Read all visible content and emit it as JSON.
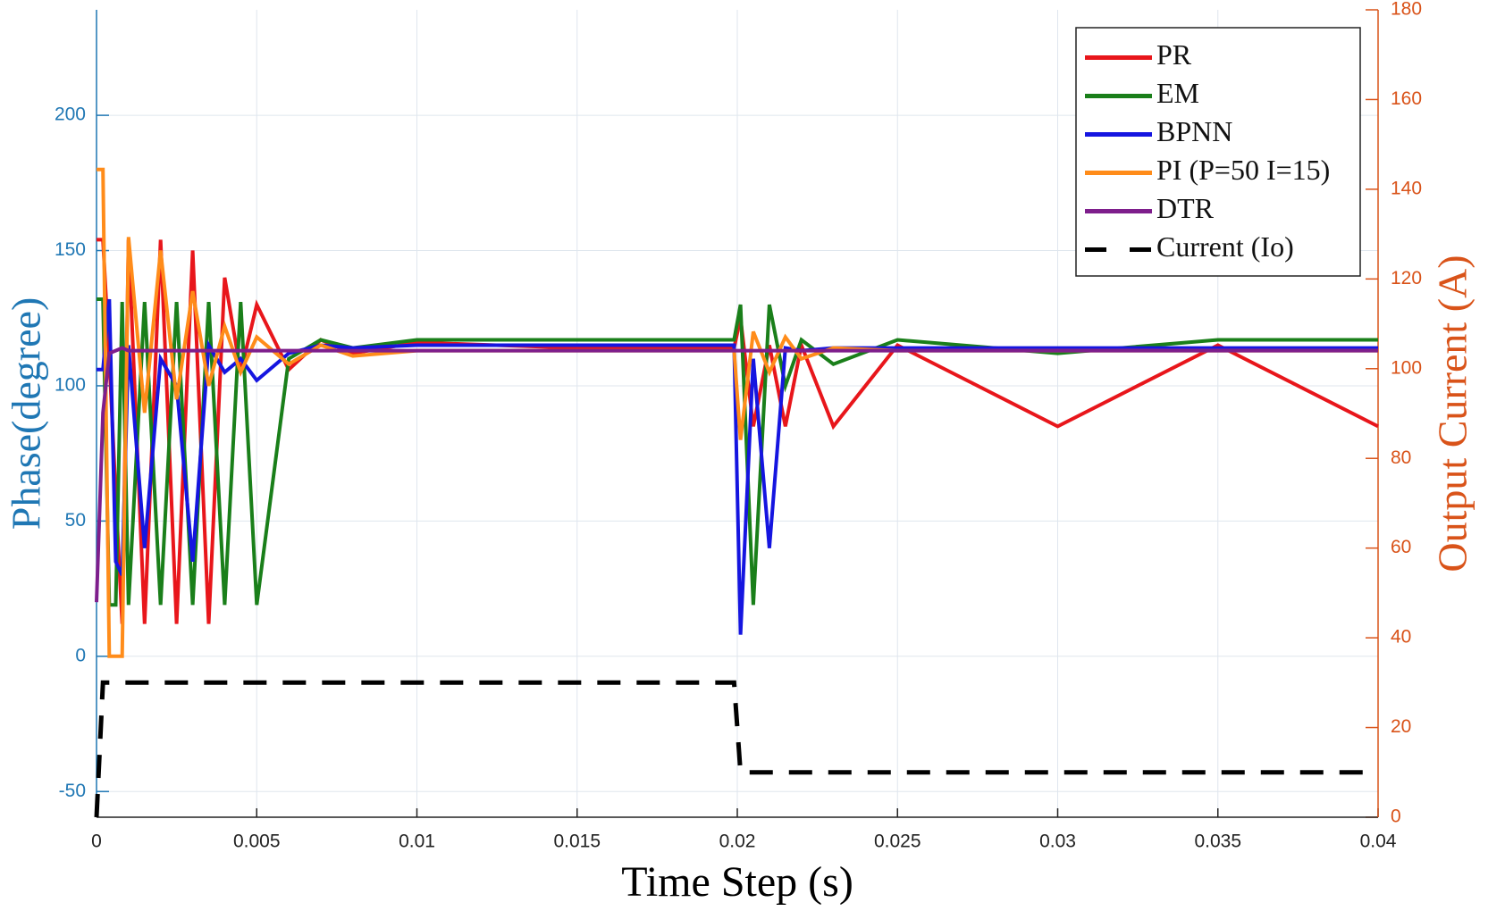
{
  "chart_data": {
    "type": "line",
    "x_label": "Time Step (s)",
    "y_label": "Phase(degree)",
    "y2_label": "Output Current (A)",
    "xlim": [
      0,
      0.04
    ],
    "xticks": [
      0,
      0.005,
      0.01,
      0.015,
      0.02,
      0.025,
      0.03,
      0.035,
      0.04
    ],
    "ylim": [
      -59.5,
      239
    ],
    "yticks": [
      -50,
      0,
      50,
      100,
      150,
      200
    ],
    "y2lim": [
      0,
      180
    ],
    "y2ticks": [
      0,
      20,
      40,
      60,
      80,
      100,
      120,
      140,
      160,
      180
    ],
    "grid": true,
    "legend": "upper right",
    "y_color": "#1f77b4",
    "y2_color": "#d95319",
    "x": [
      0,
      0.0002,
      0.0004,
      0.0006,
      0.0008,
      0.001,
      0.0015,
      0.002,
      0.0025,
      0.003,
      0.0035,
      0.004,
      0.0045,
      0.005,
      0.006,
      0.007,
      0.008,
      0.01,
      0.015,
      0.0199,
      0.0201,
      0.0205,
      0.021,
      0.0215,
      0.022,
      0.023,
      0.025,
      0.03,
      0.035,
      0.04
    ],
    "series": [
      {
        "name": "PR",
        "color": "#e8161b",
        "dash": false,
        "values": [
          154,
          154,
          110,
          60,
          12,
          154,
          12,
          154,
          12,
          150,
          12,
          140,
          105,
          130,
          106,
          117,
          112,
          116,
          114,
          114,
          125,
          85,
          115,
          85,
          115,
          85,
          115,
          85,
          115,
          85
        ]
      },
      {
        "name": "EM",
        "color": "#1a7f1a",
        "dash": false,
        "values": [
          132,
          132,
          19,
          19,
          131,
          19,
          131,
          19,
          131,
          19,
          131,
          19,
          131,
          19,
          110,
          117,
          114,
          117,
          117,
          117,
          130,
          19,
          130,
          100,
          117,
          108,
          117,
          112,
          117,
          117
        ]
      },
      {
        "name": "BPNN",
        "color": "#1515e0",
        "dash": false,
        "values": [
          106,
          106,
          132,
          35,
          30,
          115,
          40,
          110,
          100,
          35,
          115,
          105,
          110,
          102,
          112,
          115,
          114,
          115,
          115,
          115,
          8,
          110,
          40,
          114,
          113,
          114,
          114,
          114,
          114,
          114
        ]
      },
      {
        "name": "PI (P=50 I=15)",
        "color": "#ff8c1a",
        "dash": false,
        "values": [
          180,
          180,
          0,
          0,
          0,
          155,
          90,
          150,
          95,
          135,
          100,
          122,
          105,
          118,
          108,
          115,
          111,
          113,
          113,
          113,
          80,
          120,
          105,
          118,
          110,
          114,
          113,
          113,
          113,
          113
        ]
      },
      {
        "name": "DTR",
        "color": "#7e1e8c",
        "dash": false,
        "values": [
          20,
          90,
          112,
          113,
          114,
          113,
          113,
          113,
          113,
          113,
          113,
          113,
          113,
          113,
          113,
          113,
          113,
          113,
          113,
          113,
          113,
          113,
          113,
          113,
          113,
          113,
          113,
          113,
          113,
          113
        ]
      },
      {
        "name": "Current (Io)",
        "color": "#000000",
        "dash": true,
        "axis": "y2",
        "values": [
          0,
          30,
          30,
          30,
          30,
          30,
          30,
          30,
          30,
          30,
          30,
          30,
          30,
          30,
          30,
          30,
          30,
          30,
          30,
          30,
          10,
          10,
          10,
          10,
          10,
          10,
          10,
          10,
          10,
          10
        ]
      }
    ]
  }
}
